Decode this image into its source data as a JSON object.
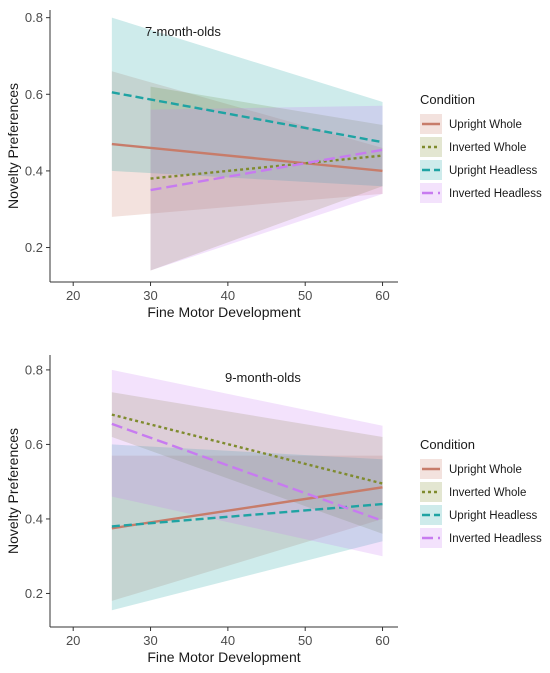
{
  "chart_data": [
    {
      "type": "line",
      "title": "7-month-olds",
      "xlabel": "Fine Motor Development",
      "ylabel": "Novelty Preferences",
      "xlim": [
        17,
        62
      ],
      "ylim": [
        0.11,
        0.82
      ],
      "xticks": [
        20,
        30,
        40,
        50,
        60
      ],
      "yticks": [
        0.2,
        0.4,
        0.6,
        0.8
      ],
      "grid": false,
      "legend": {
        "title": "Condition",
        "position": "right"
      },
      "series": [
        {
          "name": "Upright Whole",
          "color": "#C77C6A",
          "dash": "solid",
          "x": [
            25,
            60
          ],
          "y": [
            0.47,
            0.4
          ],
          "ci_lower": [
            0.28,
            0.34
          ],
          "ci_upper": [
            0.66,
            0.46
          ]
        },
        {
          "name": "Inverted Whole",
          "color": "#7F8B2E",
          "dash": "dotted",
          "x": [
            30,
            60
          ],
          "y": [
            0.38,
            0.44
          ],
          "ci_lower": [
            0.14,
            0.36
          ],
          "ci_upper": [
            0.62,
            0.52
          ]
        },
        {
          "name": "Upright Headless",
          "color": "#1FA3A3",
          "dash": "dashed",
          "x": [
            25,
            60
          ],
          "y": [
            0.605,
            0.475
          ],
          "ci_lower": [
            0.4,
            0.36
          ],
          "ci_upper": [
            0.8,
            0.58
          ]
        },
        {
          "name": "Inverted Headless",
          "color": "#C77BF0",
          "dash": "longdash",
          "x": [
            30,
            60
          ],
          "y": [
            0.35,
            0.455
          ],
          "ci_lower": [
            0.14,
            0.34
          ],
          "ci_upper": [
            0.56,
            0.57
          ]
        }
      ]
    },
    {
      "type": "line",
      "title": "9-month-olds",
      "xlabel": "Fine Motor Development",
      "ylabel": "Novelty Preferences",
      "xlim": [
        17,
        62
      ],
      "ylim": [
        0.11,
        0.84
      ],
      "xticks": [
        20,
        30,
        40,
        50,
        60
      ],
      "yticks": [
        0.2,
        0.4,
        0.6,
        0.8
      ],
      "grid": false,
      "legend": {
        "title": "Condition",
        "position": "right"
      },
      "series": [
        {
          "name": "Upright Whole",
          "color": "#C77C6A",
          "dash": "solid",
          "x": [
            25,
            60
          ],
          "y": [
            0.375,
            0.485
          ],
          "ci_lower": [
            0.18,
            0.4
          ],
          "ci_upper": [
            0.57,
            0.57
          ]
        },
        {
          "name": "Inverted Whole",
          "color": "#7F8B2E",
          "dash": "dotted",
          "x": [
            25,
            60
          ],
          "y": [
            0.68,
            0.495
          ],
          "ci_lower": [
            0.62,
            0.36
          ],
          "ci_upper": [
            0.74,
            0.62
          ]
        },
        {
          "name": "Upright Headless",
          "color": "#1FA3A3",
          "dash": "dashed",
          "x": [
            25,
            60
          ],
          "y": [
            0.38,
            0.44
          ],
          "ci_lower": [
            0.155,
            0.34
          ],
          "ci_upper": [
            0.6,
            0.56
          ]
        },
        {
          "name": "Inverted Headless",
          "color": "#C77BF0",
          "dash": "longdash",
          "x": [
            25,
            60
          ],
          "y": [
            0.655,
            0.395
          ],
          "ci_lower": [
            0.46,
            0.3
          ],
          "ci_upper": [
            0.8,
            0.65
          ]
        }
      ]
    }
  ]
}
